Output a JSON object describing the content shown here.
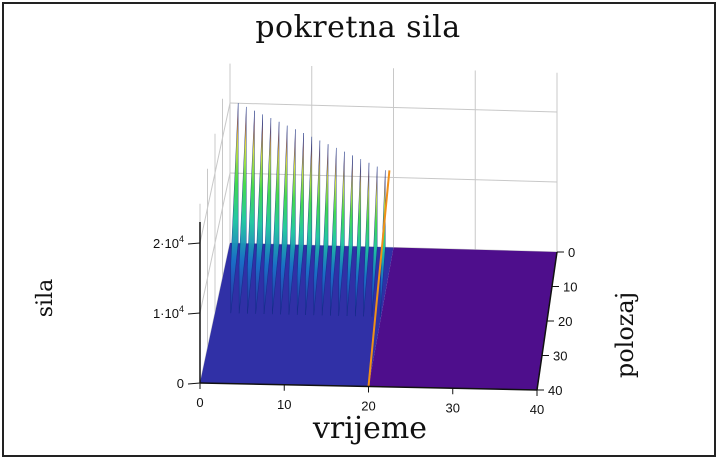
{
  "chart_data": {
    "type": "surface3d",
    "title": "pokretna sila",
    "xlabel": "vrijeme",
    "ylabel": "polozaj",
    "zlabel": "sila",
    "x_ticks": [
      "0",
      "10",
      "20",
      "30",
      "40"
    ],
    "y_ticks": [
      "0",
      "10",
      "20",
      "30",
      "40"
    ],
    "z_ticks": [
      {
        "base": "0",
        "exp": ""
      },
      {
        "base": "1·10",
        "exp": "4"
      },
      {
        "base": "2·10",
        "exp": "4"
      }
    ],
    "x_range": [
      0,
      40
    ],
    "y_range": [
      0,
      40
    ],
    "z_range": [
      0,
      20000
    ],
    "grid": true,
    "colormap": [
      "#2a2fa0",
      "#1a70c8",
      "#1ec7a0",
      "#3dd94a",
      "#d6e23a",
      "#ff2a1a"
    ],
    "floor_color_early": "#3030a6",
    "floor_color_late": "#4e0e8c",
    "ridges": [
      {
        "x": 1,
        "y_end": 19,
        "peak": 20000
      },
      {
        "x": 2,
        "y_end": 19,
        "peak": 19500
      },
      {
        "x": 3,
        "y_end": 19,
        "peak": 19000
      },
      {
        "x": 4,
        "y_end": 19,
        "peak": 18500
      },
      {
        "x": 5,
        "y_end": 19,
        "peak": 18000
      },
      {
        "x": 6,
        "y_end": 19,
        "peak": 17500
      },
      {
        "x": 7,
        "y_end": 19,
        "peak": 17000
      },
      {
        "x": 8,
        "y_end": 19,
        "peak": 16500
      },
      {
        "x": 9,
        "y_end": 19,
        "peak": 16000
      },
      {
        "x": 10,
        "y_end": 19,
        "peak": 15500
      },
      {
        "x": 11,
        "y_end": 19,
        "peak": 15000
      },
      {
        "x": 12,
        "y_end": 19,
        "peak": 14500
      },
      {
        "x": 13,
        "y_end": 19,
        "peak": 14000
      },
      {
        "x": 14,
        "y_end": 19,
        "peak": 13500
      },
      {
        "x": 15,
        "y_end": 19,
        "peak": 13000
      },
      {
        "x": 16,
        "y_end": 19,
        "peak": 12500
      },
      {
        "x": 17,
        "y_end": 19,
        "peak": 12000
      },
      {
        "x": 18,
        "y_end": 19,
        "peak": 11500
      },
      {
        "x": 19,
        "y_end": 19,
        "peak": 11000
      }
    ]
  }
}
